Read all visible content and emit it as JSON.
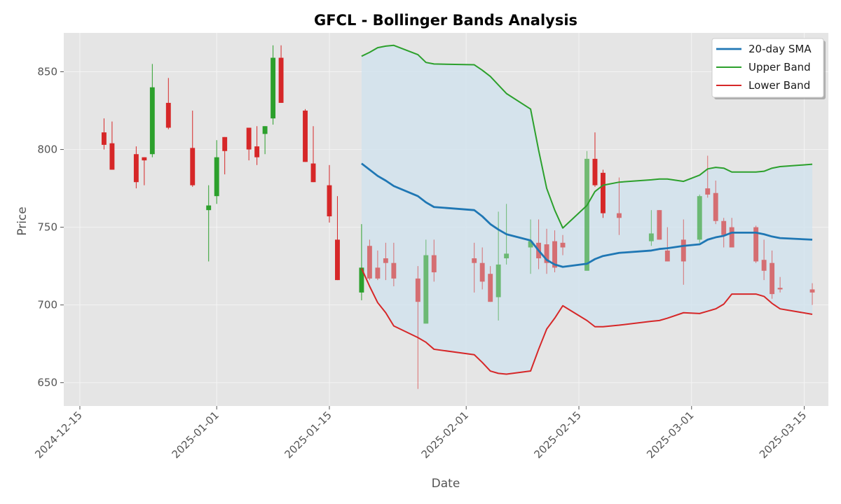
{
  "chart_data": {
    "type": "candlestick",
    "title": "GFCL - Bollinger Bands Analysis",
    "xlabel": "Date",
    "ylabel": "Price",
    "x_range": [
      "2024-12-13",
      "2025-03-18"
    ],
    "ylim": [
      635,
      875
    ],
    "grid": true,
    "legend_position": "top-right",
    "x_ticks": [
      "2024-12-15",
      "2025-01-01",
      "2025-01-15",
      "2025-02-01",
      "2025-02-15",
      "2025-03-01",
      "2025-03-15"
    ],
    "y_ticks": [
      650,
      700,
      750,
      800,
      850
    ],
    "colors": {
      "up": "#2ca02c",
      "down": "#d62728",
      "sma": "#1f77b4",
      "upper_band": "#2ca02c",
      "lower_band": "#d62728",
      "band_fill": "#cfe2ee",
      "plot_bg": "#e5e5e5",
      "grid": "#f4f4f4"
    },
    "candles": [
      {
        "date": "2024-12-18",
        "open": 811,
        "high": 820,
        "low": 800,
        "close": 803,
        "dimmed": false
      },
      {
        "date": "2024-12-19",
        "open": 804,
        "high": 818,
        "low": 787,
        "close": 787,
        "dimmed": false
      },
      {
        "date": "2024-12-22",
        "open": 797,
        "high": 802,
        "low": 775,
        "close": 779,
        "dimmed": false
      },
      {
        "date": "2024-12-23",
        "open": 795,
        "high": 795,
        "low": 777,
        "close": 793,
        "dimmed": false
      },
      {
        "date": "2024-12-24",
        "open": 797,
        "high": 855,
        "low": 795,
        "close": 840,
        "dimmed": false
      },
      {
        "date": "2024-12-26",
        "open": 830,
        "high": 846,
        "low": 813,
        "close": 814,
        "dimmed": false
      },
      {
        "date": "2024-12-29",
        "open": 801,
        "high": 825,
        "low": 776,
        "close": 777,
        "dimmed": false
      },
      {
        "date": "2024-12-31",
        "open": 761,
        "high": 777,
        "low": 728,
        "close": 764,
        "dimmed": false
      },
      {
        "date": "2025-01-01",
        "open": 770,
        "high": 806,
        "low": 765,
        "close": 795,
        "dimmed": false
      },
      {
        "date": "2025-01-02",
        "open": 808,
        "high": 808,
        "low": 784,
        "close": 799,
        "dimmed": false
      },
      {
        "date": "2025-01-05",
        "open": 814,
        "high": 814,
        "low": 793,
        "close": 800,
        "dimmed": false
      },
      {
        "date": "2025-01-06",
        "open": 802,
        "high": 815,
        "low": 790,
        "close": 795,
        "dimmed": false
      },
      {
        "date": "2025-01-07",
        "open": 810,
        "high": 815,
        "low": 797,
        "close": 815,
        "dimmed": false
      },
      {
        "date": "2025-01-08",
        "open": 820,
        "high": 867,
        "low": 816,
        "close": 859,
        "dimmed": false
      },
      {
        "date": "2025-01-09",
        "open": 859,
        "high": 867,
        "low": 830,
        "close": 830,
        "dimmed": false
      },
      {
        "date": "2025-01-12",
        "open": 825,
        "high": 826,
        "low": 792,
        "close": 792,
        "dimmed": false
      },
      {
        "date": "2025-01-13",
        "open": 791,
        "high": 815,
        "low": 779,
        "close": 779,
        "dimmed": false
      },
      {
        "date": "2025-01-15",
        "open": 777,
        "high": 790,
        "low": 753,
        "close": 757,
        "dimmed": false
      },
      {
        "date": "2025-01-16",
        "open": 742,
        "high": 770,
        "low": 716,
        "close": 716,
        "dimmed": false
      },
      {
        "date": "2025-01-19",
        "open": 708,
        "high": 752,
        "low": 703,
        "close": 724,
        "dimmed": false
      },
      {
        "date": "2025-01-20",
        "open": 738,
        "high": 742,
        "low": 716,
        "close": 717,
        "dimmed": true
      },
      {
        "date": "2025-01-21",
        "open": 724,
        "high": 735,
        "low": 716,
        "close": 717,
        "dimmed": true
      },
      {
        "date": "2025-01-22",
        "open": 730,
        "high": 740,
        "low": 716,
        "close": 727,
        "dimmed": true
      },
      {
        "date": "2025-01-23",
        "open": 727,
        "high": 740,
        "low": 712,
        "close": 717,
        "dimmed": true
      },
      {
        "date": "2025-01-26",
        "open": 717,
        "high": 725,
        "low": 646,
        "close": 702,
        "dimmed": true
      },
      {
        "date": "2025-01-27",
        "open": 688,
        "high": 742,
        "low": 688,
        "close": 732,
        "dimmed": true
      },
      {
        "date": "2025-01-28",
        "open": 732,
        "high": 742,
        "low": 715,
        "close": 721,
        "dimmed": true
      },
      {
        "date": "2025-02-02",
        "open": 730,
        "high": 740,
        "low": 708,
        "close": 727,
        "dimmed": true
      },
      {
        "date": "2025-02-03",
        "open": 727,
        "high": 737,
        "low": 710,
        "close": 715,
        "dimmed": true
      },
      {
        "date": "2025-02-04",
        "open": 720,
        "high": 725,
        "low": 702,
        "close": 702,
        "dimmed": true
      },
      {
        "date": "2025-02-05",
        "open": 705,
        "high": 760,
        "low": 690,
        "close": 726,
        "dimmed": true
      },
      {
        "date": "2025-02-06",
        "open": 730,
        "high": 765,
        "low": 726,
        "close": 733,
        "dimmed": true
      },
      {
        "date": "2025-02-09",
        "open": 737,
        "high": 755,
        "low": 720,
        "close": 741,
        "dimmed": true
      },
      {
        "date": "2025-02-10",
        "open": 740,
        "high": 755,
        "low": 723,
        "close": 730,
        "dimmed": true
      },
      {
        "date": "2025-02-11",
        "open": 739,
        "high": 749,
        "low": 720,
        "close": 727,
        "dimmed": true
      },
      {
        "date": "2025-02-12",
        "open": 741,
        "high": 748,
        "low": 721,
        "close": 724,
        "dimmed": true
      },
      {
        "date": "2025-02-13",
        "open": 740,
        "high": 745,
        "low": 732,
        "close": 737,
        "dimmed": true
      },
      {
        "date": "2025-02-16",
        "open": 722,
        "high": 799,
        "low": 722,
        "close": 794,
        "dimmed": true
      },
      {
        "date": "2025-02-17",
        "open": 794,
        "high": 811,
        "low": 776,
        "close": 777,
        "dimmed": false
      },
      {
        "date": "2025-02-18",
        "open": 785,
        "high": 787,
        "low": 756,
        "close": 759,
        "dimmed": false
      },
      {
        "date": "2025-02-20",
        "open": 759,
        "high": 782,
        "low": 745,
        "close": 756,
        "dimmed": true
      },
      {
        "date": "2025-02-24",
        "open": 741,
        "high": 761,
        "low": 738,
        "close": 746,
        "dimmed": true
      },
      {
        "date": "2025-02-25",
        "open": 761,
        "high": 761,
        "low": 742,
        "close": 742,
        "dimmed": true
      },
      {
        "date": "2025-02-26",
        "open": 735,
        "high": 750,
        "low": 728,
        "close": 728,
        "dimmed": true
      },
      {
        "date": "2025-02-28",
        "open": 742,
        "high": 755,
        "low": 713,
        "close": 728,
        "dimmed": true
      },
      {
        "date": "2025-03-02",
        "open": 742,
        "high": 771,
        "low": 740,
        "close": 770,
        "dimmed": true
      },
      {
        "date": "2025-03-03",
        "open": 775,
        "high": 796,
        "low": 769,
        "close": 771,
        "dimmed": true
      },
      {
        "date": "2025-03-04",
        "open": 772,
        "high": 780,
        "low": 752,
        "close": 754,
        "dimmed": true
      },
      {
        "date": "2025-03-05",
        "open": 754,
        "high": 756,
        "low": 737,
        "close": 745,
        "dimmed": true
      },
      {
        "date": "2025-03-06",
        "open": 750,
        "high": 756,
        "low": 737,
        "close": 737,
        "dimmed": true
      },
      {
        "date": "2025-03-09",
        "open": 750,
        "high": 751,
        "low": 727,
        "close": 728,
        "dimmed": true
      },
      {
        "date": "2025-03-10",
        "open": 729,
        "high": 742,
        "low": 716,
        "close": 722,
        "dimmed": true
      },
      {
        "date": "2025-03-11",
        "open": 727,
        "high": 735,
        "low": 704,
        "close": 707,
        "dimmed": true
      },
      {
        "date": "2025-03-12",
        "open": 711,
        "high": 718,
        "low": 708,
        "close": 710,
        "dimmed": true
      },
      {
        "date": "2025-03-16",
        "open": 710,
        "high": 714,
        "low": 700,
        "close": 708,
        "dimmed": true
      }
    ],
    "series": [
      {
        "name": "20-day SMA",
        "color": "#1f77b4",
        "points": [
          [
            "2025-01-19",
            791
          ],
          [
            "2025-01-20",
            787
          ],
          [
            "2025-01-21",
            783
          ],
          [
            "2025-01-22",
            780
          ],
          [
            "2025-01-23",
            776.5
          ],
          [
            "2025-01-26",
            770
          ],
          [
            "2025-01-27",
            766
          ],
          [
            "2025-01-28",
            763
          ],
          [
            "2025-02-02",
            761
          ],
          [
            "2025-02-03",
            757
          ],
          [
            "2025-02-04",
            752
          ],
          [
            "2025-02-05",
            748.5
          ],
          [
            "2025-02-06",
            745.5
          ],
          [
            "2025-02-09",
            741.5
          ],
          [
            "2025-02-10",
            735
          ],
          [
            "2025-02-11",
            729
          ],
          [
            "2025-02-12",
            726
          ],
          [
            "2025-02-13",
            724.5
          ],
          [
            "2025-02-16",
            726.5
          ],
          [
            "2025-02-17",
            729.5
          ],
          [
            "2025-02-18",
            731.5
          ],
          [
            "2025-02-20",
            733.5
          ],
          [
            "2025-02-24",
            735
          ],
          [
            "2025-02-25",
            736
          ],
          [
            "2025-02-26",
            736.5
          ],
          [
            "2025-02-28",
            738
          ],
          [
            "2025-03-02",
            739
          ],
          [
            "2025-03-03",
            742
          ],
          [
            "2025-03-04",
            743.5
          ],
          [
            "2025-03-05",
            744.5
          ],
          [
            "2025-03-06",
            746.5
          ],
          [
            "2025-03-09",
            746.5
          ],
          [
            "2025-03-10",
            745.5
          ],
          [
            "2025-03-11",
            744
          ],
          [
            "2025-03-12",
            743
          ],
          [
            "2025-03-16",
            742
          ]
        ]
      },
      {
        "name": "Upper Band",
        "color": "#2ca02c",
        "points": [
          [
            "2025-01-19",
            860
          ],
          [
            "2025-01-20",
            862.5
          ],
          [
            "2025-01-21",
            865.5
          ],
          [
            "2025-01-22",
            866.5
          ],
          [
            "2025-01-23",
            867
          ],
          [
            "2025-01-26",
            861
          ],
          [
            "2025-01-27",
            856
          ],
          [
            "2025-01-28",
            855
          ],
          [
            "2025-02-02",
            854.5
          ],
          [
            "2025-02-03",
            851
          ],
          [
            "2025-02-04",
            847
          ],
          [
            "2025-02-05",
            841.5
          ],
          [
            "2025-02-06",
            836
          ],
          [
            "2025-02-09",
            826
          ],
          [
            "2025-02-10",
            799.5
          ],
          [
            "2025-02-11",
            775
          ],
          [
            "2025-02-12",
            761
          ],
          [
            "2025-02-13",
            749.5
          ],
          [
            "2025-02-16",
            764
          ],
          [
            "2025-02-17",
            773
          ],
          [
            "2025-02-18",
            777
          ],
          [
            "2025-02-20",
            779
          ],
          [
            "2025-02-24",
            780.5
          ],
          [
            "2025-02-25",
            781
          ],
          [
            "2025-02-26",
            781
          ],
          [
            "2025-02-28",
            779.5
          ],
          [
            "2025-03-02",
            783.5
          ],
          [
            "2025-03-03",
            787.5
          ],
          [
            "2025-03-04",
            788.5
          ],
          [
            "2025-03-05",
            788
          ],
          [
            "2025-03-06",
            785.5
          ],
          [
            "2025-03-09",
            785.5
          ],
          [
            "2025-03-10",
            786
          ],
          [
            "2025-03-11",
            788
          ],
          [
            "2025-03-12",
            789
          ],
          [
            "2025-03-16",
            790.5
          ]
        ]
      },
      {
        "name": "Lower Band",
        "color": "#d62728",
        "points": [
          [
            "2025-01-19",
            723.5
          ],
          [
            "2025-01-20",
            712
          ],
          [
            "2025-01-21",
            701.5
          ],
          [
            "2025-01-22",
            695
          ],
          [
            "2025-01-23",
            686.5
          ],
          [
            "2025-01-26",
            679
          ],
          [
            "2025-01-27",
            676
          ],
          [
            "2025-01-28",
            671.5
          ],
          [
            "2025-02-02",
            668
          ],
          [
            "2025-02-03",
            663
          ],
          [
            "2025-02-04",
            657.5
          ],
          [
            "2025-02-05",
            656
          ],
          [
            "2025-02-06",
            655.5
          ],
          [
            "2025-02-09",
            657.5
          ],
          [
            "2025-02-10",
            671.5
          ],
          [
            "2025-02-11",
            684.5
          ],
          [
            "2025-02-12",
            691.5
          ],
          [
            "2025-02-13",
            699.5
          ],
          [
            "2025-02-16",
            690
          ],
          [
            "2025-02-17",
            686
          ],
          [
            "2025-02-18",
            686
          ],
          [
            "2025-02-20",
            687
          ],
          [
            "2025-02-24",
            689.5
          ],
          [
            "2025-02-25",
            690
          ],
          [
            "2025-02-26",
            691.5
          ],
          [
            "2025-02-28",
            695
          ],
          [
            "2025-03-02",
            694.5
          ],
          [
            "2025-03-03",
            696
          ],
          [
            "2025-03-04",
            697.5
          ],
          [
            "2025-03-05",
            700.5
          ],
          [
            "2025-03-06",
            707
          ],
          [
            "2025-03-09",
            707
          ],
          [
            "2025-03-10",
            705.5
          ],
          [
            "2025-03-11",
            701
          ],
          [
            "2025-03-12",
            697.5
          ],
          [
            "2025-03-16",
            694
          ]
        ]
      }
    ]
  }
}
